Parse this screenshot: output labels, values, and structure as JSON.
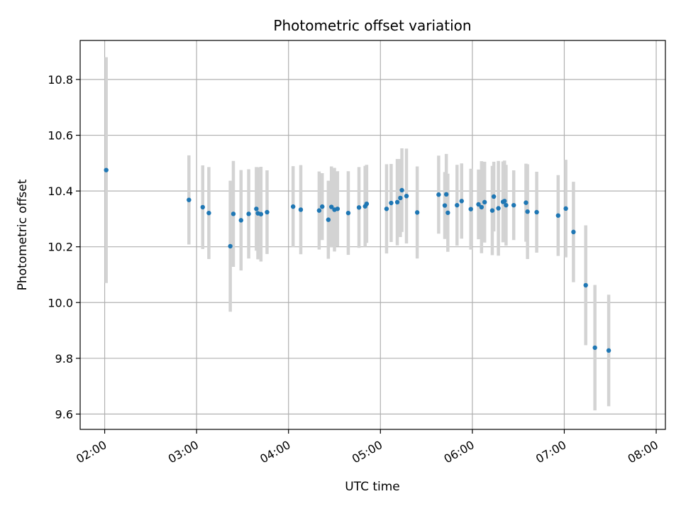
{
  "chart_data": {
    "type": "scatter",
    "title": "Photometric offset variation",
    "xlabel": "UTC time",
    "ylabel": "Photometric offset",
    "xlim": [
      "01:44",
      "08:06"
    ],
    "ylim": [
      9.545,
      10.94
    ],
    "x_ticks": [
      "02:00",
      "03:00",
      "04:00",
      "05:00",
      "06:00",
      "07:00",
      "08:00"
    ],
    "y_ticks": [
      "9.6",
      "9.8",
      "10.0",
      "10.2",
      "10.4",
      "10.6",
      "10.8"
    ],
    "grid": true,
    "legend": "none",
    "colors": {
      "point": "#1f77b4",
      "errorbar": "#d3d3d3",
      "grid": "#b0b0b0"
    },
    "series": [
      {
        "x": [
          "02:01",
          "02:55",
          "03:04",
          "03:08",
          "03:22",
          "03:24",
          "03:29",
          "03:34",
          "03:39",
          "03:40",
          "03:42",
          "03:46",
          "04:03",
          "04:08",
          "04:20",
          "04:22",
          "04:26",
          "04:28",
          "04:30",
          "04:32",
          "04:39",
          "04:46",
          "04:50",
          "04:51",
          "05:04",
          "05:07",
          "05:11",
          "05:13",
          "05:14",
          "05:17",
          "05:24",
          "05:38",
          "05:42",
          "05:43",
          "05:44",
          "05:50",
          "05:53",
          "05:59",
          "06:04",
          "06:06",
          "06:08",
          "06:13",
          "06:14",
          "06:17",
          "06:20",
          "06:21",
          "06:22",
          "06:27",
          "06:35",
          "06:36",
          "06:42",
          "06:56",
          "07:01",
          "07:06"
        ],
        "y": [
          10.475,
          10.368,
          10.342,
          10.321,
          10.202,
          10.318,
          10.295,
          10.318,
          10.336,
          10.32,
          10.317,
          10.324,
          10.344,
          10.333,
          10.33,
          10.344,
          10.297,
          10.343,
          10.333,
          10.336,
          10.321,
          10.341,
          10.345,
          10.354,
          10.336,
          10.357,
          10.36,
          10.375,
          10.403,
          10.382,
          10.323,
          10.387,
          10.348,
          10.388,
          10.322,
          10.349,
          10.364,
          10.335,
          10.352,
          10.342,
          10.36,
          10.33,
          10.38,
          10.338,
          10.361,
          10.364,
          10.349,
          10.349,
          10.358,
          10.326,
          10.324,
          10.312,
          10.337,
          10.253
        ],
        "err": [
          0.405,
          0.16,
          0.15,
          0.165,
          0.235,
          0.19,
          0.18,
          0.16,
          0.15,
          0.165,
          0.17,
          0.15,
          0.145,
          0.16,
          0.14,
          0.12,
          0.14,
          0.145,
          0.15,
          0.135,
          0.15,
          0.145,
          0.145,
          0.14,
          0.16,
          0.14,
          0.155,
          0.14,
          0.15,
          0.17,
          0.165,
          0.14,
          0.12,
          0.145,
          0.14,
          0.145,
          0.135,
          0.145,
          0.125,
          0.165,
          0.145,
          0.16,
          0.125,
          0.17,
          0.145,
          0.145,
          0.145,
          0.125,
          0.14,
          0.17,
          0.145,
          0.145,
          0.175,
          0.18
        ]
      },
      {
        "x": [
          "07:14",
          "07:20",
          "07:29"
        ],
        "y": [
          10.062,
          9.838,
          9.828
        ],
        "err": [
          0.215,
          0.225,
          0.2
        ]
      }
    ]
  }
}
